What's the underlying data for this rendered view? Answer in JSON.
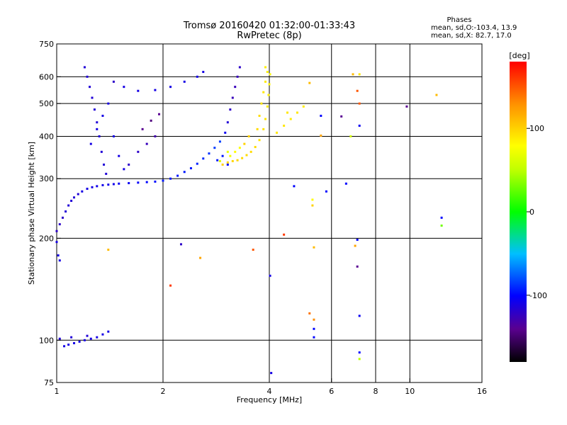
{
  "header": {
    "title_line1": "Tromsø 20160420 01:32:00-01:33:43",
    "title_line2": "RwPretec (8p)"
  },
  "stats": {
    "heading": "Phases",
    "o_line": "mean, sd,O:-103.4, 13.9",
    "x_line": "mean, sd,X:  82.7, 17.0"
  },
  "colorbar": {
    "label": "[deg]",
    "ticks": [
      {
        "value": 100,
        "label": "100"
      },
      {
        "value": 0,
        "label": "0"
      },
      {
        "value": -100,
        "label": "-100"
      }
    ],
    "range": [
      -180,
      180
    ]
  },
  "chart_data": {
    "type": "scatter",
    "title": "Tromsø 20160420 01:32:00-01:33:43",
    "subtitle": "RwPretec (8p)",
    "xlabel": "Frequency [MHz]",
    "ylabel": "Stationary phase Virtual Height [km]",
    "x_scale": "log",
    "y_scale": "log",
    "xlim": [
      1,
      16
    ],
    "ylim": [
      75,
      750
    ],
    "grid": true,
    "x_ticks": [
      {
        "value": 1,
        "label": "1"
      },
      {
        "value": 2,
        "label": "2"
      },
      {
        "value": 4,
        "label": "4"
      },
      {
        "value": 6,
        "label": "6"
      },
      {
        "value": 8,
        "label": "8"
      },
      {
        "value": 10,
        "label": "10"
      },
      {
        "value": 16,
        "label": "16"
      }
    ],
    "y_ticks": [
      {
        "value": 75,
        "label": "75"
      },
      {
        "value": 100,
        "label": "100"
      },
      {
        "value": 200,
        "label": "200"
      },
      {
        "value": 300,
        "label": "300"
      },
      {
        "value": 400,
        "label": "400"
      },
      {
        "value": 500,
        "label": "500"
      },
      {
        "value": 600,
        "label": "600"
      },
      {
        "value": 750,
        "label": "750"
      }
    ],
    "x_gridlines": [
      2,
      4,
      6,
      8,
      10
    ],
    "y_gridlines": [
      100,
      200,
      300,
      400,
      500,
      600
    ],
    "color_value": "phase [deg]",
    "series": [
      {
        "mode": "O",
        "points": [
          [
            1.0,
            195,
            -110
          ],
          [
            1.01,
            178,
            -110
          ],
          [
            1.02,
            172,
            -110
          ],
          [
            1.0,
            210,
            -120
          ],
          [
            1.02,
            220,
            -120
          ],
          [
            1.04,
            230,
            -120
          ],
          [
            1.06,
            240,
            -115
          ],
          [
            1.08,
            250,
            -115
          ],
          [
            1.1,
            258,
            -115
          ],
          [
            1.12,
            264,
            -115
          ],
          [
            1.15,
            270,
            -115
          ],
          [
            1.18,
            275,
            -110
          ],
          [
            1.22,
            280,
            -110
          ],
          [
            1.26,
            283,
            -110
          ],
          [
            1.3,
            285,
            -108
          ],
          [
            1.35,
            287,
            -108
          ],
          [
            1.4,
            288,
            -108
          ],
          [
            1.45,
            289,
            -108
          ],
          [
            1.5,
            290,
            -105
          ],
          [
            1.6,
            291,
            -105
          ],
          [
            1.7,
            292,
            -102
          ],
          [
            1.8,
            293,
            -100
          ],
          [
            1.9,
            294,
            -98
          ],
          [
            2.0,
            296,
            -95
          ],
          [
            2.1,
            300,
            -95
          ],
          [
            2.2,
            306,
            -95
          ],
          [
            2.3,
            314,
            -95
          ],
          [
            2.4,
            322,
            -95
          ],
          [
            2.5,
            332,
            -92
          ],
          [
            2.6,
            344,
            -90
          ],
          [
            2.7,
            356,
            -88
          ],
          [
            2.8,
            370,
            -86
          ],
          [
            2.9,
            386,
            -85
          ],
          [
            3.0,
            410,
            -105
          ],
          [
            3.05,
            440,
            -115
          ],
          [
            3.1,
            480,
            -120
          ],
          [
            3.15,
            520,
            -125
          ],
          [
            3.2,
            560,
            -125
          ],
          [
            3.25,
            600,
            -125
          ],
          [
            3.3,
            640,
            -120
          ],
          [
            1.2,
            640,
            -115
          ],
          [
            1.22,
            600,
            -115
          ],
          [
            1.24,
            560,
            -115
          ],
          [
            1.26,
            520,
            -115
          ],
          [
            1.28,
            480,
            -115
          ],
          [
            1.3,
            440,
            -115
          ],
          [
            1.32,
            400,
            -115
          ],
          [
            1.34,
            360,
            -115
          ],
          [
            1.36,
            330,
            -115
          ],
          [
            1.38,
            310,
            -115
          ],
          [
            1.25,
            380,
            -110
          ],
          [
            1.3,
            420,
            -110
          ],
          [
            1.35,
            460,
            -110
          ],
          [
            1.4,
            500,
            -110
          ],
          [
            1.45,
            400,
            -110
          ],
          [
            1.5,
            350,
            -110
          ],
          [
            1.55,
            320,
            -110
          ],
          [
            1.6,
            330,
            -120
          ],
          [
            1.7,
            360,
            -120
          ],
          [
            1.8,
            380,
            -125
          ],
          [
            1.9,
            400,
            -130
          ],
          [
            1.75,
            420,
            -140
          ],
          [
            1.85,
            445,
            -145
          ],
          [
            1.95,
            465,
            -140
          ],
          [
            1.55,
            560,
            -110
          ],
          [
            1.7,
            545,
            -110
          ],
          [
            1.9,
            548,
            -110
          ],
          [
            2.1,
            560,
            -110
          ],
          [
            2.3,
            580,
            -110
          ],
          [
            2.6,
            620,
            -110
          ],
          [
            2.5,
            600,
            -110
          ],
          [
            1.45,
            580,
            -120
          ],
          [
            2.85,
            340,
            -95
          ],
          [
            2.95,
            350,
            -95
          ],
          [
            3.05,
            330,
            -100
          ],
          [
            1.05,
            96,
            -110
          ],
          [
            1.08,
            97,
            -110
          ],
          [
            1.12,
            98,
            -110
          ],
          [
            1.16,
            99,
            -110
          ],
          [
            1.2,
            100,
            -110
          ],
          [
            1.25,
            101,
            -110
          ],
          [
            1.3,
            102,
            -110
          ],
          [
            1.35,
            104,
            -110
          ],
          [
            1.4,
            106,
            -110
          ],
          [
            1.1,
            102,
            -115
          ],
          [
            1.22,
            103,
            -115
          ],
          [
            1.02,
            101,
            -115
          ],
          [
            4.02,
            155,
            -110
          ],
          [
            4.05,
            80,
            -110
          ],
          [
            5.35,
            102,
            -100
          ],
          [
            5.35,
            108,
            -100
          ],
          [
            7.2,
            92,
            -100
          ],
          [
            7.2,
            118,
            -105
          ],
          [
            7.1,
            198,
            -100
          ],
          [
            7.2,
            430,
            -105
          ],
          [
            6.6,
            290,
            -100
          ],
          [
            5.8,
            275,
            -100
          ],
          [
            12.3,
            230,
            -100
          ],
          [
            4.7,
            285,
            -100
          ],
          [
            7.1,
            165,
            -140
          ],
          [
            9.8,
            490,
            -140
          ],
          [
            6.4,
            458,
            -140
          ],
          [
            2.25,
            192,
            -120
          ],
          [
            5.6,
            460,
            -100
          ]
        ]
      },
      {
        "mode": "X",
        "points": [
          [
            2.95,
            330,
            100
          ],
          [
            3.05,
            335,
            100
          ],
          [
            3.15,
            338,
            98
          ],
          [
            3.25,
            340,
            98
          ],
          [
            3.35,
            345,
            96
          ],
          [
            3.45,
            352,
            95
          ],
          [
            3.55,
            360,
            95
          ],
          [
            3.65,
            372,
            95
          ],
          [
            3.75,
            390,
            92
          ],
          [
            3.85,
            420,
            92
          ],
          [
            3.9,
            450,
            90
          ],
          [
            3.95,
            490,
            88
          ],
          [
            3.98,
            530,
            86
          ],
          [
            4.0,
            570,
            84
          ],
          [
            4.02,
            610,
            82
          ],
          [
            3.7,
            420,
            95
          ],
          [
            3.75,
            460,
            95
          ],
          [
            3.8,
            500,
            92
          ],
          [
            3.85,
            540,
            90
          ],
          [
            3.9,
            580,
            88
          ],
          [
            3.95,
            620,
            86
          ],
          [
            3.9,
            640,
            86
          ],
          [
            3.5,
            400,
            100
          ],
          [
            3.4,
            380,
            100
          ],
          [
            4.2,
            410,
            90
          ],
          [
            4.4,
            430,
            90
          ],
          [
            4.6,
            450,
            88
          ],
          [
            4.8,
            470,
            90
          ],
          [
            5.0,
            490,
            88
          ],
          [
            4.5,
            470,
            90
          ],
          [
            3.2,
            360,
            80
          ],
          [
            3.3,
            370,
            78
          ],
          [
            3.1,
            350,
            75
          ],
          [
            3.05,
            360,
            70
          ],
          [
            2.9,
            338,
            65
          ],
          [
            7.2,
            610,
            90
          ],
          [
            5.6,
            402,
            120
          ],
          [
            6.8,
            400,
            60
          ],
          [
            7.1,
            545,
            150
          ],
          [
            7.2,
            500,
            150
          ],
          [
            1.4,
            185,
            110
          ],
          [
            2.55,
            175,
            120
          ],
          [
            3.6,
            185,
            150
          ],
          [
            4.4,
            205,
            160
          ],
          [
            7.0,
            190,
            120
          ],
          [
            5.2,
            120,
            140
          ],
          [
            5.35,
            115,
            130
          ],
          [
            5.35,
            188,
            110
          ],
          [
            5.3,
            250,
            100
          ],
          [
            7.2,
            88,
            50
          ],
          [
            12.3,
            218,
            30
          ],
          [
            11.9,
            530,
            110
          ],
          [
            6.9,
            610,
            110
          ],
          [
            5.3,
            260,
            80
          ],
          [
            5.2,
            575,
            110
          ],
          [
            2.1,
            145,
            160
          ]
        ]
      }
    ]
  }
}
